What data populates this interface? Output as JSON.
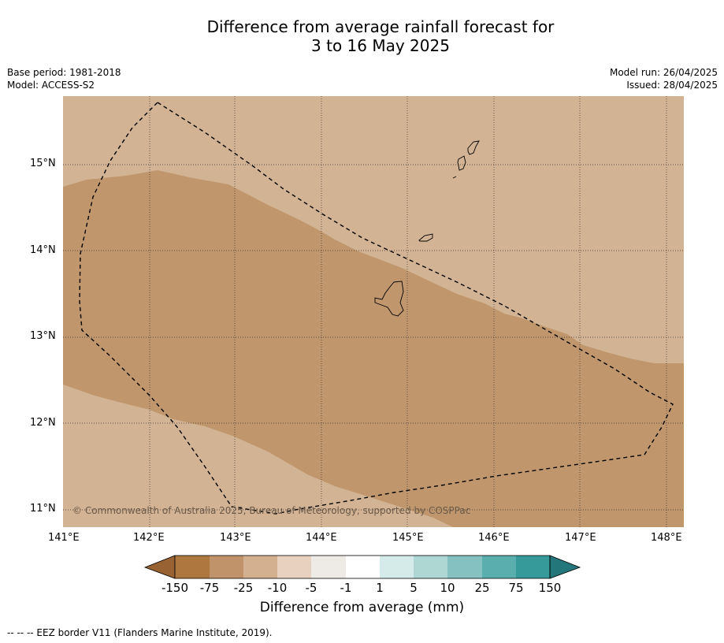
{
  "title": {
    "line1": "Difference from average rainfall forecast for",
    "line2": "3 to 16 May 2025"
  },
  "meta_left": {
    "base_period": "Base period: 1981-2018",
    "model": "Model: ACCESS-S2"
  },
  "meta_right": {
    "model_run": "Model run: 26/04/2025",
    "issued": "Issued: 28/04/2025"
  },
  "map": {
    "lon_range": [
      141.0,
      148.2
    ],
    "lat_range": [
      10.8,
      15.8
    ],
    "lon_ticks": [
      {
        "value": 141,
        "label": "141°E"
      },
      {
        "value": 142,
        "label": "142°E"
      },
      {
        "value": 143,
        "label": "143°E"
      },
      {
        "value": 144,
        "label": "144°E"
      },
      {
        "value": 145,
        "label": "145°E"
      },
      {
        "value": 146,
        "label": "146°E"
      },
      {
        "value": 147,
        "label": "147°E"
      },
      {
        "value": 148,
        "label": "148°E"
      }
    ],
    "lat_ticks": [
      {
        "value": 15,
        "label": "15°N"
      },
      {
        "value": 14,
        "label": "14°N"
      },
      {
        "value": 13,
        "label": "13°N"
      },
      {
        "value": 12,
        "label": "12°N"
      },
      {
        "value": 11,
        "label": "11°N"
      }
    ],
    "copyright": "© Commonwealth of Australia 2025, Bureau of Meteorology, supported by COSPPac",
    "colors": {
      "light_dry": "#d2b393",
      "moderate_dry": "#c0966c"
    }
  },
  "colorbar": {
    "colors": [
      "#996232",
      "#ae773f",
      "#c0936a",
      "#d3b090",
      "#e8d1bf",
      "#eeeae6",
      "#ffffff",
      "#d4ebe9",
      "#aed6d3",
      "#85c1c0",
      "#5aaeae",
      "#369a9a",
      "#23777a"
    ],
    "tick_labels": [
      "-150",
      "-75",
      "-25",
      "-10",
      "-5",
      "-1",
      "1",
      "5",
      "10",
      "25",
      "75",
      "150"
    ],
    "title": "Difference from average (mm)"
  },
  "footnote": "-- -- -- EEZ border V11 (Flanders Marine Institute, 2019)."
}
